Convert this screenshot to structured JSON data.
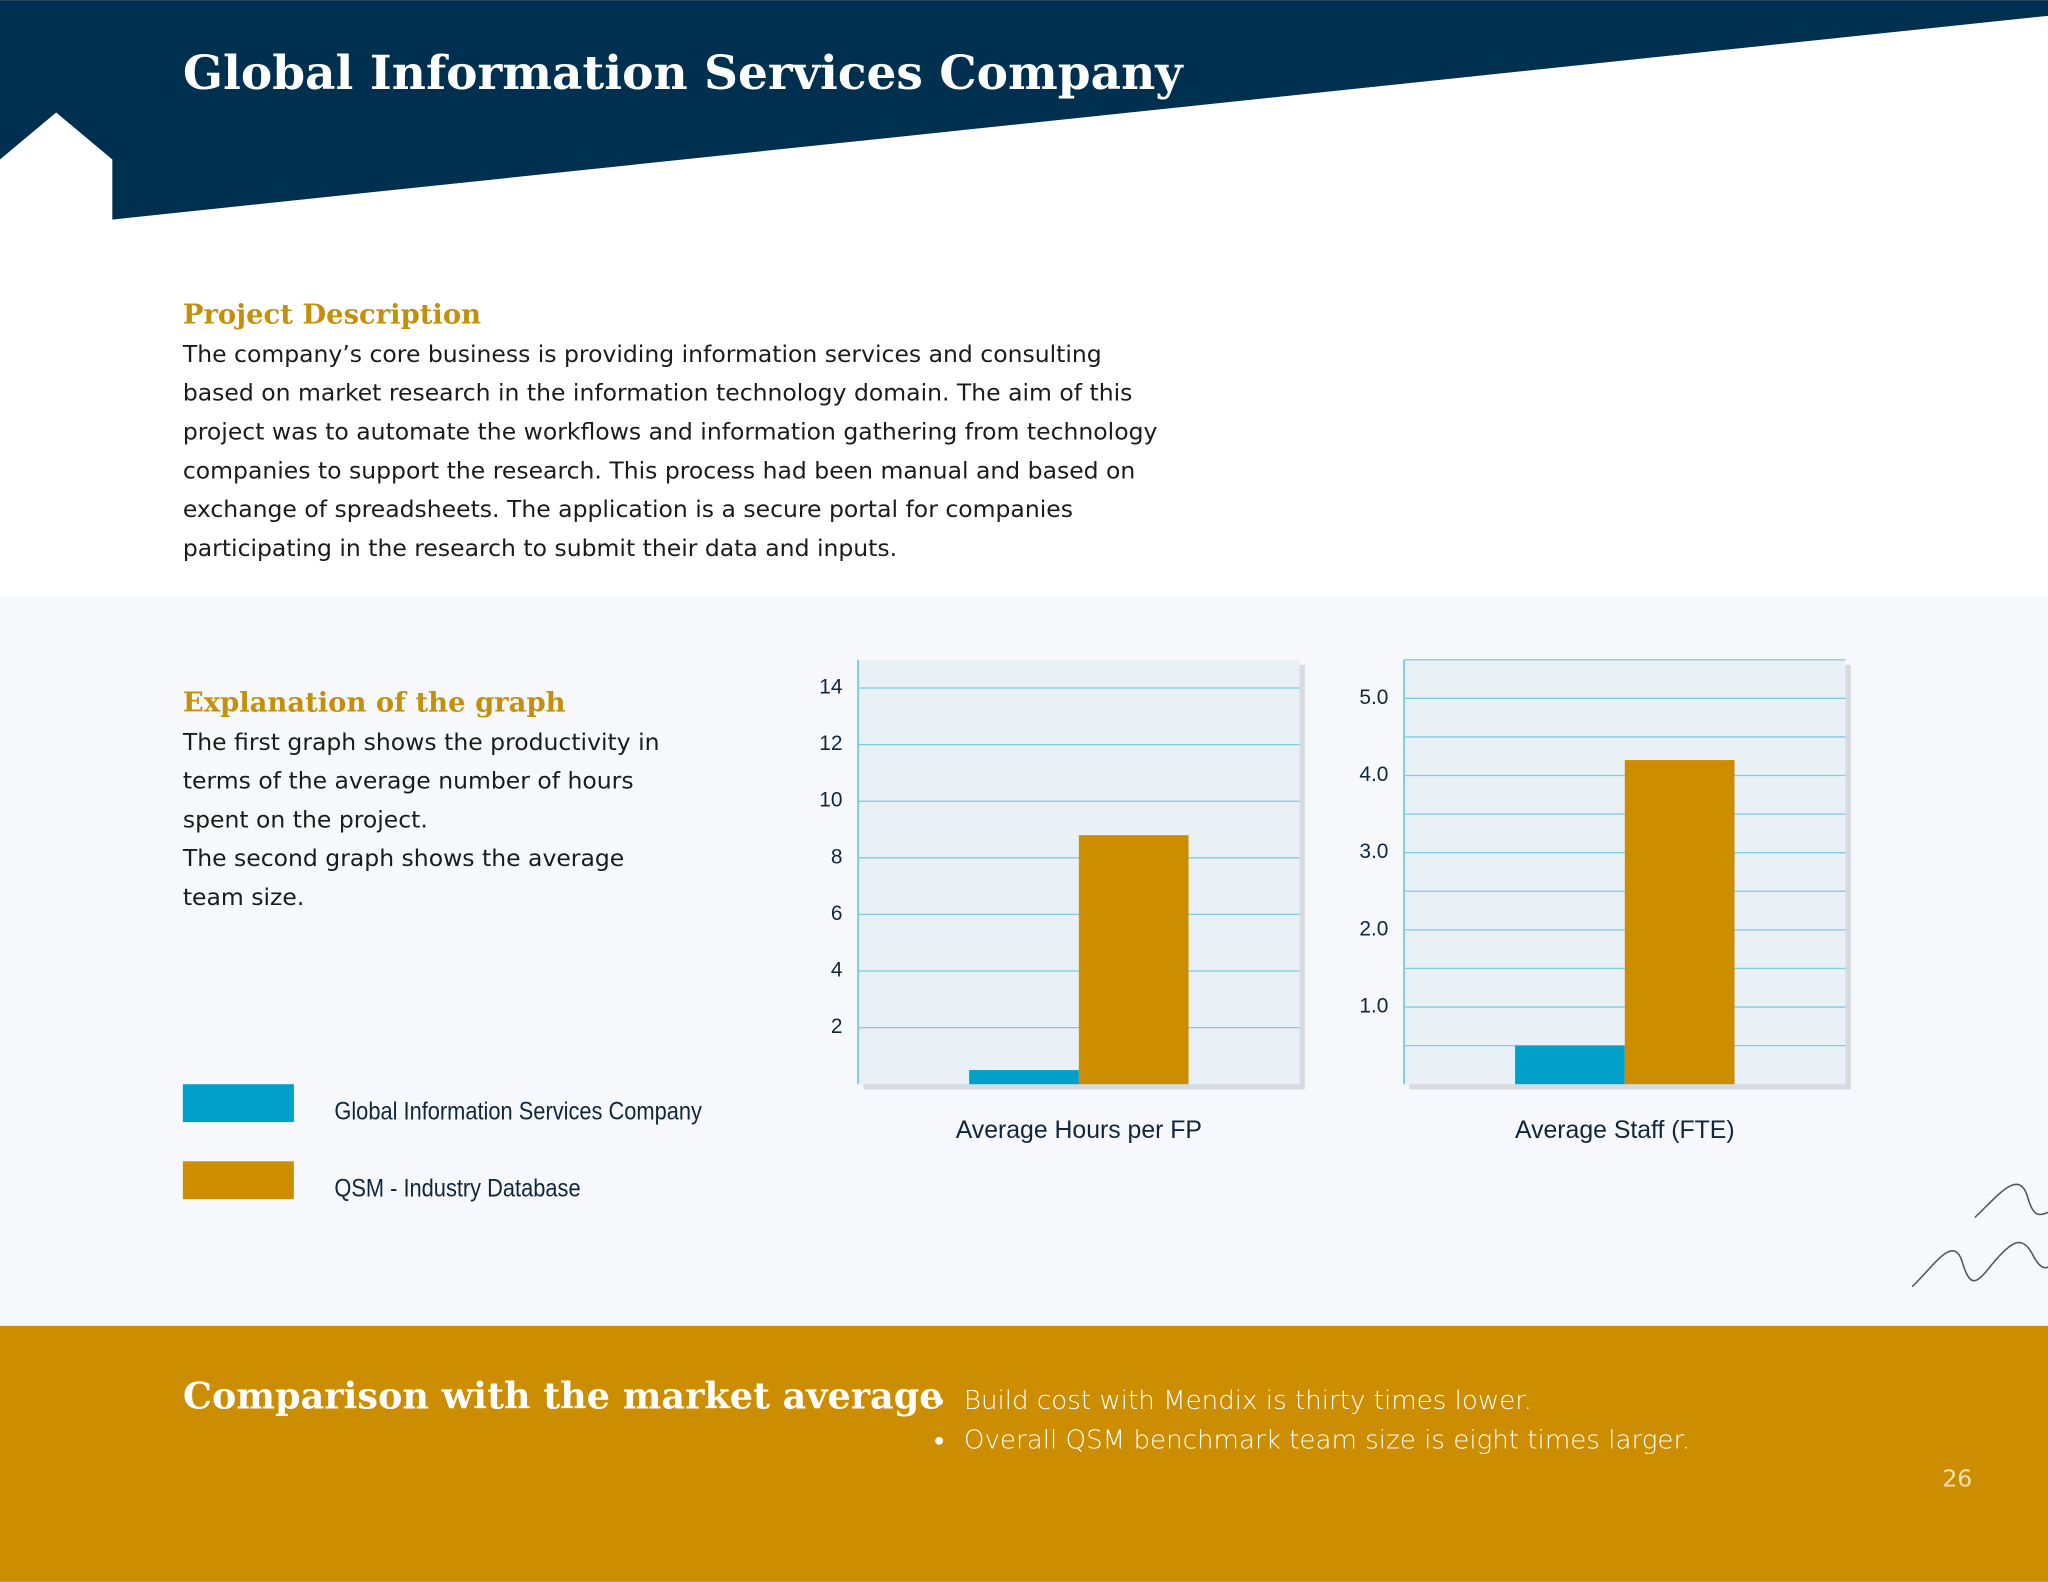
{
  "header": {
    "title": "Global Information Services Company"
  },
  "description": {
    "heading": "Project Description",
    "lines": [
      "The company’s core business is providing information services and consulting",
      "based on market research in the information technology domain. The aim of this",
      "project was to automate the workflows and information gathering from technology",
      "companies to support the research. This process had been manual and based on",
      "exchange of spreadsheets. The application is a secure portal for companies",
      "participating in the research to submit their data and inputs."
    ]
  },
  "explanation": {
    "heading": "Explanation of the graph",
    "lines": [
      "The first graph shows the productivity in",
      "terms of the average number of hours",
      "spent on the project.",
      "The second graph shows the average",
      "team size."
    ]
  },
  "chart_data": [
    {
      "type": "bar",
      "categories": [
        "Average Hours per FP"
      ],
      "ylim": [
        0,
        15
      ],
      "yticks": [
        2,
        4,
        6,
        8,
        10,
        12,
        14
      ],
      "grid": true,
      "series": [
        {
          "name": "Global Information Services Company",
          "color": "#00a0cb",
          "values": [
            0.5
          ]
        },
        {
          "name": "QSM - Industry Database",
          "color": "#cc8e00",
          "values": [
            8.8
          ]
        }
      ]
    },
    {
      "type": "bar",
      "categories": [
        "Average Staff (FTE)"
      ],
      "ylim": [
        0,
        5.5
      ],
      "yticks": [
        {
          "value": 1,
          "label": "1.0"
        },
        {
          "value": 2,
          "label": "2.0"
        },
        {
          "value": 3,
          "label": "3.0"
        },
        {
          "value": 4,
          "label": "4.0"
        },
        {
          "value": 5,
          "label": "5.0"
        }
      ],
      "minor_grid": [
        0.5,
        1.5,
        2.5,
        3.5,
        4.5,
        5.5
      ],
      "grid": true,
      "series": [
        {
          "color": "#00a0cb",
          "values": [
            0.5
          ]
        },
        {
          "color": "#cc8e00",
          "values": [
            4.2
          ]
        }
      ]
    }
  ],
  "comparison": {
    "heading": "Comparison with the market average",
    "bullets": [
      "Build cost with Mendix is thirty times lower.",
      "Overall QSM benchmark team size is eight times larger."
    ]
  },
  "page_number": "26"
}
